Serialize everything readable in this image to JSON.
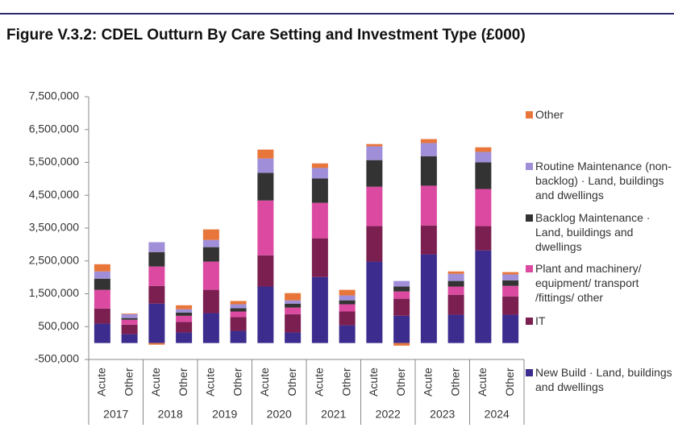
{
  "chart_data": {
    "type": "stacked-bar",
    "title": "Figure V.3.2: CDEL Outturn By Care Setting and Investment Type (£000)",
    "categories": [
      "Acute",
      "Other",
      "Acute",
      "Other",
      "Acute",
      "Other",
      "Acute",
      "Other",
      "Acute",
      "Other",
      "Acute",
      "Other",
      "Acute",
      "Other",
      "Acute",
      "Other"
    ],
    "groups": [
      "2017",
      "2018",
      "2019",
      "2020",
      "2021",
      "2022",
      "2023",
      "2024"
    ],
    "ylim": [
      -500000,
      7500000
    ],
    "yticks": [
      {
        "value": -500000,
        "label": "-500,000"
      },
      {
        "value": 500000,
        "label": "500,000"
      },
      {
        "value": 1500000,
        "label": "1,500,000"
      },
      {
        "value": 2500000,
        "label": "2,500,000"
      },
      {
        "value": 3500000,
        "label": "3,500,000"
      },
      {
        "value": 4500000,
        "label": "4,500,000"
      },
      {
        "value": 5500000,
        "label": "5,500,000"
      },
      {
        "value": 6500000,
        "label": "6,500,000"
      },
      {
        "value": 7500000,
        "label": "7,500,000"
      }
    ],
    "grid": false,
    "legend": "right",
    "series": [
      {
        "name": "New Build · Land, buildings and dwellings",
        "color": "#3b2c8e",
        "values": [
          590000,
          270000,
          1200000,
          320000,
          910000,
          370000,
          1720000,
          320000,
          2010000,
          540000,
          2480000,
          830000,
          2700000,
          860000,
          2820000,
          860000
        ]
      },
      {
        "name": "IT",
        "color": "#7b1e50",
        "values": [
          460000,
          290000,
          540000,
          320000,
          710000,
          420000,
          950000,
          560000,
          1180000,
          420000,
          1080000,
          520000,
          880000,
          610000,
          740000,
          560000
        ]
      },
      {
        "name": "Plant and machinery/ equipment/ transport /fittings/ other",
        "color": "#db4aa0",
        "values": [
          570000,
          150000,
          590000,
          190000,
          860000,
          170000,
          1670000,
          200000,
          1080000,
          220000,
          1200000,
          220000,
          1210000,
          250000,
          1130000,
          320000
        ]
      },
      {
        "name": "Backlog Maintenance · Land, buildings and dwellings",
        "color": "#333333",
        "values": [
          340000,
          50000,
          440000,
          100000,
          440000,
          100000,
          840000,
          120000,
          740000,
          120000,
          810000,
          150000,
          900000,
          170000,
          810000,
          170000
        ]
      },
      {
        "name": "Routine Maintenance (non-backlog) · Land, buildings and dwellings",
        "color": "#a08fd8",
        "values": [
          220000,
          120000,
          300000,
          100000,
          220000,
          120000,
          440000,
          100000,
          320000,
          150000,
          420000,
          170000,
          400000,
          220000,
          320000,
          180000
        ]
      },
      {
        "name": "Other",
        "color": "#e8763a",
        "values": [
          220000,
          20000,
          -50000,
          120000,
          320000,
          100000,
          270000,
          220000,
          140000,
          170000,
          70000,
          -80000,
          120000,
          70000,
          140000,
          70000
        ]
      }
    ]
  }
}
